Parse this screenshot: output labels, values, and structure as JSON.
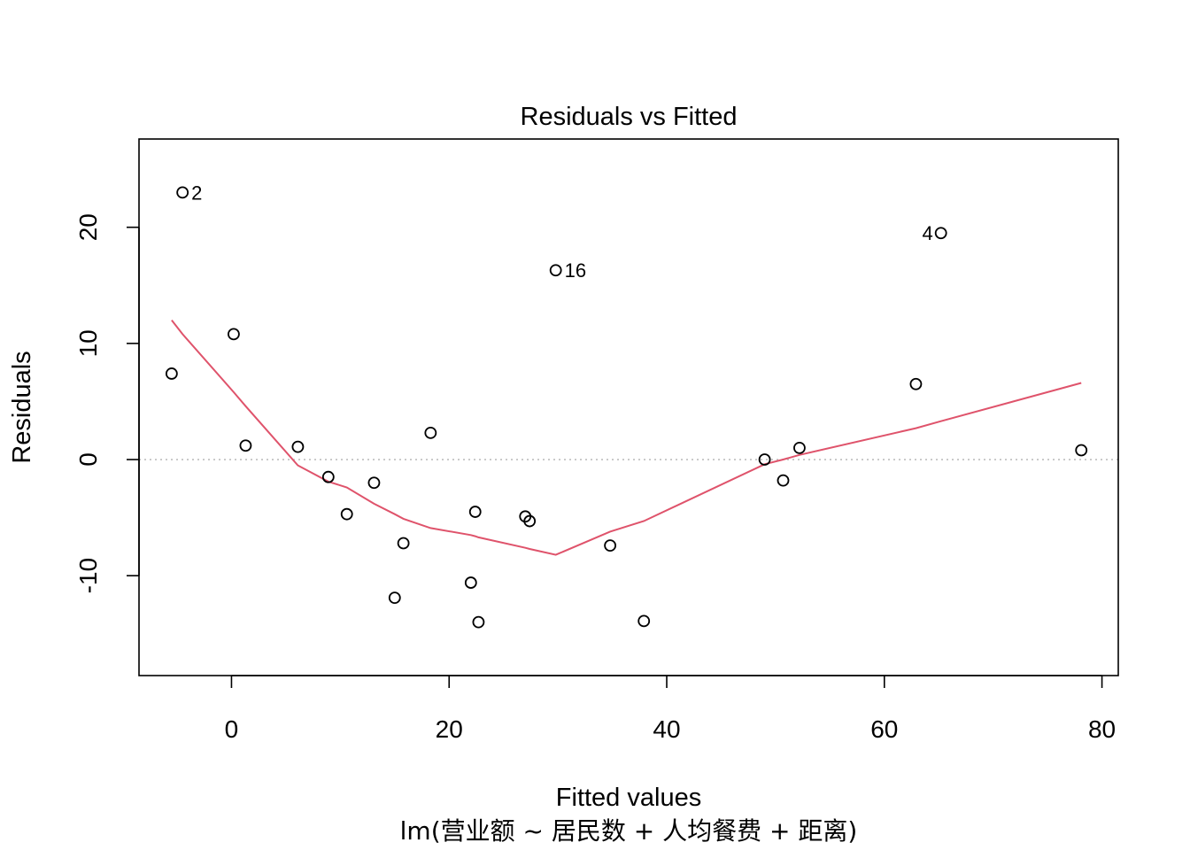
{
  "chart_data": {
    "type": "scatter",
    "title": "Residuals vs Fitted",
    "xlabel": "Fitted values",
    "caption": "lm(营业额 ~ 居民数 + 人均餐费 + 距离)",
    "ylabel": "Residuals",
    "xlim": [
      -8.5,
      81.5
    ],
    "ylim": [
      -18.6,
      27.6
    ],
    "x_ticks": [
      0,
      20,
      40,
      60,
      80
    ],
    "y_ticks": [
      -10,
      0,
      10,
      20
    ],
    "reference_line": {
      "y": 0,
      "style": "dotted",
      "color": "#BEBEBE"
    },
    "points": [
      {
        "x": -4.5,
        "y": 23.0,
        "label": "2"
      },
      {
        "x": -5.5,
        "y": 7.4
      },
      {
        "x": 0.2,
        "y": 10.8
      },
      {
        "x": 1.3,
        "y": 1.2
      },
      {
        "x": 6.1,
        "y": 1.1
      },
      {
        "x": 8.9,
        "y": -1.5
      },
      {
        "x": 10.6,
        "y": -4.7
      },
      {
        "x": 13.1,
        "y": -2.0
      },
      {
        "x": 15.0,
        "y": -11.9
      },
      {
        "x": 15.8,
        "y": -7.2
      },
      {
        "x": 18.3,
        "y": 2.3
      },
      {
        "x": 22.0,
        "y": -10.6
      },
      {
        "x": 22.4,
        "y": -4.5
      },
      {
        "x": 22.7,
        "y": -14.0
      },
      {
        "x": 27.0,
        "y": -4.9
      },
      {
        "x": 27.4,
        "y": -5.3
      },
      {
        "x": 29.8,
        "y": 16.3,
        "label": "16"
      },
      {
        "x": 34.8,
        "y": -7.4
      },
      {
        "x": 37.9,
        "y": -13.9
      },
      {
        "x": 49.0,
        "y": 0.0
      },
      {
        "x": 50.7,
        "y": -1.8
      },
      {
        "x": 52.2,
        "y": 1.0
      },
      {
        "x": 62.9,
        "y": 6.5
      },
      {
        "x": 65.2,
        "y": 19.5,
        "label": "4"
      },
      {
        "x": 78.1,
        "y": 0.8
      }
    ],
    "smooth_line": {
      "color": "#DF536B",
      "x": [
        -5.5,
        -4.5,
        0.2,
        1.3,
        6.1,
        8.9,
        10.6,
        13.1,
        15.0,
        15.8,
        18.3,
        22.0,
        22.4,
        22.7,
        27.0,
        27.4,
        29.8,
        34.8,
        37.9,
        49.0,
        50.7,
        52.2,
        62.9,
        65.2,
        78.1
      ],
      "y": [
        12.0,
        10.8,
        5.8,
        4.6,
        -0.5,
        -1.9,
        -2.4,
        -3.8,
        -4.7,
        -5.1,
        -5.9,
        -6.5,
        -6.6,
        -6.7,
        -7.6,
        -7.7,
        -8.2,
        -6.2,
        -5.3,
        -0.4,
        0.0,
        0.4,
        2.7,
        3.3,
        6.6
      ]
    }
  }
}
